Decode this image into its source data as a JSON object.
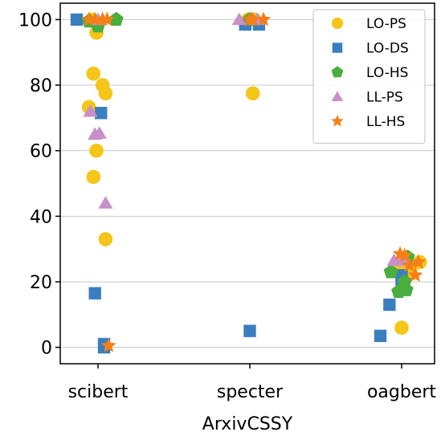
{
  "chart_data": {
    "type": "scatter",
    "title": "",
    "xlabel": "ArxivCSSY",
    "ylabel": "",
    "categories": [
      "scibert",
      "specter",
      "oagbert"
    ],
    "ylim": [
      -5,
      105
    ],
    "yticks": [
      0,
      20,
      40,
      60,
      80,
      100
    ],
    "grid": "horizontal",
    "legend_position": "top-right",
    "series": [
      {
        "name": "LO-PS",
        "marker": "circle",
        "color": "#f5c518",
        "points": [
          {
            "category": "scibert",
            "jitter": -0.04,
            "y": 100
          },
          {
            "category": "scibert",
            "jitter": -0.01,
            "y": 96
          },
          {
            "category": "scibert",
            "jitter": -0.03,
            "y": 83.5
          },
          {
            "category": "scibert",
            "jitter": 0.03,
            "y": 80
          },
          {
            "category": "scibert",
            "jitter": 0.05,
            "y": 77.5
          },
          {
            "category": "scibert",
            "jitter": -0.06,
            "y": 73.3
          },
          {
            "category": "scibert",
            "jitter": -0.01,
            "y": 60
          },
          {
            "category": "scibert",
            "jitter": -0.03,
            "y": 52
          },
          {
            "category": "scibert",
            "jitter": 0.05,
            "y": 33
          },
          {
            "category": "specter",
            "jitter": -0.01,
            "y": 100
          },
          {
            "category": "specter",
            "jitter": 0.03,
            "y": 100
          },
          {
            "category": "specter",
            "jitter": 0.02,
            "y": 77.5
          },
          {
            "category": "oagbert",
            "jitter": -0.02,
            "y": 25
          },
          {
            "category": "oagbert",
            "jitter": 0.03,
            "y": 22
          },
          {
            "category": "oagbert",
            "jitter": 0.06,
            "y": 24
          },
          {
            "category": "oagbert",
            "jitter": 0.12,
            "y": 26
          },
          {
            "category": "oagbert",
            "jitter": 0.0,
            "y": 6
          }
        ]
      },
      {
        "name": "LO-DS",
        "marker": "square",
        "color": "#3a7ebf",
        "points": [
          {
            "category": "scibert",
            "jitter": -0.14,
            "y": 100
          },
          {
            "category": "scibert",
            "jitter": 0.02,
            "y": 71.5
          },
          {
            "category": "scibert",
            "jitter": -0.02,
            "y": 16.5
          },
          {
            "category": "scibert",
            "jitter": 0.04,
            "y": 1
          },
          {
            "category": "scibert",
            "jitter": 0.04,
            "y": 0
          },
          {
            "category": "specter",
            "jitter": -0.03,
            "y": 98.5
          },
          {
            "category": "specter",
            "jitter": 0.06,
            "y": 98.5
          },
          {
            "category": "specter",
            "jitter": 0.0,
            "y": 5
          },
          {
            "category": "oagbert",
            "jitter": -0.08,
            "y": 13
          },
          {
            "category": "oagbert",
            "jitter": 0.0,
            "y": 22
          },
          {
            "category": "oagbert",
            "jitter": 0.0,
            "y": 20.5
          },
          {
            "category": "oagbert",
            "jitter": -0.14,
            "y": 3.5
          }
        ]
      },
      {
        "name": "LO-HS",
        "marker": "pentagon",
        "color": "#4aae3f",
        "points": [
          {
            "category": "scibert",
            "jitter": -0.06,
            "y": 99.5
          },
          {
            "category": "scibert",
            "jitter": 0.12,
            "y": 100
          },
          {
            "category": "scibert",
            "jitter": 0.0,
            "y": 98
          },
          {
            "category": "specter",
            "jitter": 0.0,
            "y": 100
          },
          {
            "category": "oagbert",
            "jitter": -0.07,
            "y": 23
          },
          {
            "category": "oagbert",
            "jitter": -0.02,
            "y": 17
          },
          {
            "category": "oagbert",
            "jitter": 0.03,
            "y": 17.5
          },
          {
            "category": "oagbert",
            "jitter": 0.04,
            "y": 27.5
          },
          {
            "category": "oagbert",
            "jitter": 0.02,
            "y": 20
          }
        ]
      },
      {
        "name": "LL-PS",
        "marker": "triangle",
        "color": "#c98fca",
        "points": [
          {
            "category": "scibert",
            "jitter": 0.0,
            "y": 100
          },
          {
            "category": "scibert",
            "jitter": -0.05,
            "y": 72
          },
          {
            "category": "scibert",
            "jitter": -0.02,
            "y": 65
          },
          {
            "category": "scibert",
            "jitter": 0.01,
            "y": 65.3
          },
          {
            "category": "scibert",
            "jitter": 0.05,
            "y": 44
          },
          {
            "category": "specter",
            "jitter": -0.07,
            "y": 100
          },
          {
            "category": "specter",
            "jitter": 0.05,
            "y": 100
          },
          {
            "category": "oagbert",
            "jitter": -0.05,
            "y": 26.5
          },
          {
            "category": "oagbert",
            "jitter": -0.01,
            "y": 27
          },
          {
            "category": "oagbert",
            "jitter": 0.02,
            "y": 26.5
          }
        ]
      },
      {
        "name": "LL-HS",
        "marker": "star",
        "color": "#f57f17",
        "points": [
          {
            "category": "scibert",
            "jitter": -0.06,
            "y": 100
          },
          {
            "category": "scibert",
            "jitter": -0.02,
            "y": 100
          },
          {
            "category": "scibert",
            "jitter": 0.03,
            "y": 100
          },
          {
            "category": "scibert",
            "jitter": 0.06,
            "y": 100
          },
          {
            "category": "scibert",
            "jitter": 0.07,
            "y": 0.5
          },
          {
            "category": "specter",
            "jitter": 0.0,
            "y": 100
          },
          {
            "category": "specter",
            "jitter": 0.02,
            "y": 100
          },
          {
            "category": "specter",
            "jitter": 0.09,
            "y": 100
          },
          {
            "category": "oagbert",
            "jitter": -0.01,
            "y": 28.5
          },
          {
            "category": "oagbert",
            "jitter": 0.02,
            "y": 28
          },
          {
            "category": "oagbert",
            "jitter": 0.05,
            "y": 25
          },
          {
            "category": "oagbert",
            "jitter": 0.09,
            "y": 22
          },
          {
            "category": "oagbert",
            "jitter": 0.11,
            "y": 26
          }
        ]
      }
    ]
  }
}
